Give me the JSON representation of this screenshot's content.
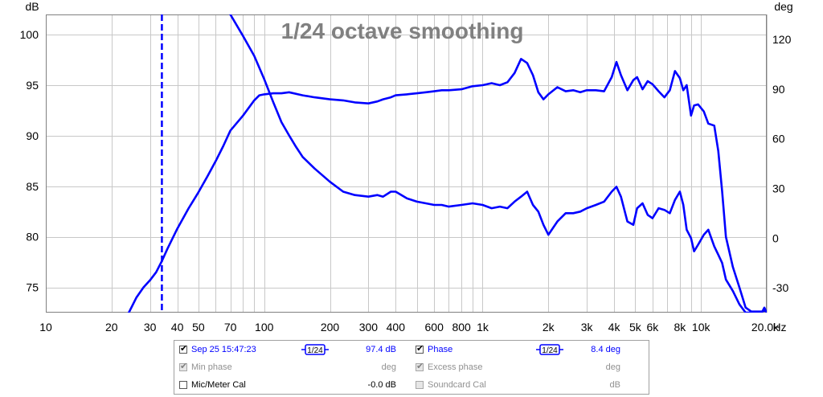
{
  "chart_data": {
    "type": "line",
    "title": "1/24 octave smoothing",
    "xlabel": "Hz",
    "ylabel_left": "dB",
    "ylabel_right": "deg",
    "x_scale": "log",
    "xlim": [
      10,
      20000
    ],
    "ylim_left": [
      72.5,
      102
    ],
    "ylim_right": [
      -45,
      135
    ],
    "grid": true,
    "x_ticks": [
      10,
      20,
      30,
      40,
      50,
      70,
      100,
      200,
      300,
      400,
      600,
      800,
      1000,
      2000,
      3000,
      4000,
      5000,
      6000,
      8000,
      10000,
      20000
    ],
    "x_tick_labels": [
      "10",
      "20",
      "30",
      "40",
      "50",
      "70",
      "100",
      "200",
      "300",
      "400",
      "600",
      "800",
      "1k",
      "2k",
      "3k",
      "4k",
      "5k",
      "6k",
      "8k",
      "10k",
      "20.0k"
    ],
    "y_ticks_left": [
      75,
      80,
      85,
      90,
      95,
      100
    ],
    "y_tick_labels_left": [
      "75",
      "80",
      "85",
      "90",
      "95",
      "100"
    ],
    "y_ticks_right": [
      -30,
      0,
      30,
      60,
      90,
      120
    ],
    "y_tick_labels_right": [
      "-30",
      "0",
      "30",
      "60",
      "90",
      "120"
    ],
    "marker_freq": 34,
    "series": [
      {
        "name": "Sep 25 15:47:23",
        "axis": "left",
        "color": "#0000ff",
        "x": [
          24,
          26,
          28,
          30,
          32,
          34,
          36,
          40,
          45,
          50,
          55,
          60,
          65,
          70,
          80,
          90,
          95,
          100,
          110,
          120,
          130,
          150,
          170,
          200,
          230,
          260,
          300,
          330,
          350,
          380,
          400,
          450,
          500,
          550,
          600,
          650,
          700,
          800,
          900,
          1000,
          1100,
          1200,
          1300,
          1400,
          1500,
          1600,
          1700,
          1800,
          1900,
          2000,
          2200,
          2400,
          2600,
          2800,
          3000,
          3300,
          3600,
          3900,
          4100,
          4300,
          4600,
          4900,
          5100,
          5400,
          5700,
          6000,
          6400,
          6800,
          7200,
          7600,
          8000,
          8300,
          8600,
          9000,
          9300,
          9700,
          10300,
          10800,
          11500,
          12000,
          12500,
          13000,
          14000,
          15000,
          16000,
          17000,
          18000,
          19000,
          19500,
          20000
        ],
        "y": [
          72.5,
          74.0,
          75.0,
          75.7,
          76.5,
          77.6,
          78.8,
          80.8,
          82.8,
          84.4,
          86.0,
          87.5,
          89.0,
          90.5,
          92.0,
          93.5,
          94.0,
          94.1,
          94.2,
          94.2,
          94.3,
          94.0,
          93.8,
          93.6,
          93.5,
          93.3,
          93.2,
          93.4,
          93.6,
          93.8,
          94.0,
          94.1,
          94.2,
          94.3,
          94.4,
          94.5,
          94.5,
          94.6,
          94.9,
          95.0,
          95.2,
          95.0,
          95.3,
          96.2,
          97.6,
          97.2,
          96.0,
          94.3,
          93.6,
          94.1,
          94.8,
          94.4,
          94.5,
          94.3,
          94.5,
          94.5,
          94.4,
          95.8,
          97.3,
          96.0,
          94.5,
          95.5,
          95.8,
          94.6,
          95.4,
          95.1,
          94.4,
          93.8,
          94.5,
          96.4,
          95.7,
          94.5,
          95.0,
          92.0,
          93.0,
          93.1,
          92.4,
          91.2,
          91.0,
          88.5,
          84.5,
          80.0,
          77.0,
          75.0,
          73.0,
          72.6,
          72.6,
          72.6,
          72.7,
          72.6
        ]
      },
      {
        "name": "Phase",
        "axis": "right",
        "color": "#0000ff",
        "x": [
          70,
          80,
          90,
          100,
          110,
          120,
          130,
          140,
          150,
          170,
          200,
          230,
          260,
          300,
          330,
          350,
          380,
          400,
          450,
          500,
          550,
          600,
          650,
          700,
          800,
          900,
          1000,
          1100,
          1200,
          1300,
          1400,
          1500,
          1600,
          1700,
          1800,
          1900,
          2000,
          2200,
          2400,
          2600,
          2800,
          3000,
          3300,
          3600,
          3900,
          4100,
          4300,
          4600,
          4900,
          5100,
          5400,
          5700,
          6000,
          6400,
          6800,
          7200,
          7600,
          8000,
          8300,
          8600,
          9000,
          9300,
          9700,
          10300,
          10800,
          11500,
          12000,
          12500,
          13000,
          14000,
          15000,
          16000,
          17000,
          18000,
          19000,
          19500,
          20000
        ],
        "y": [
          135,
          122,
          110,
          96,
          82,
          70,
          62,
          55,
          49,
          42,
          34,
          28,
          26,
          25,
          26,
          25,
          28,
          28,
          24,
          22,
          21,
          20,
          20,
          19,
          20,
          21,
          20,
          18,
          19,
          18,
          22,
          25,
          28,
          20,
          16,
          8,
          2,
          10,
          15,
          15,
          16,
          18,
          20,
          22,
          28,
          31,
          25,
          10,
          8,
          18,
          21,
          14,
          12,
          18,
          17,
          15,
          23,
          28,
          20,
          5,
          0,
          -8,
          -4,
          2,
          5,
          -5,
          -10,
          -15,
          -25,
          -32,
          -40,
          -45,
          -45,
          -45,
          -45,
          -42,
          -45
        ]
      }
    ]
  },
  "legend": {
    "rows": [
      {
        "left": {
          "label": "Sep 25 15:47:23",
          "checked": true,
          "enabled": true,
          "smoothing": "1/24",
          "value": "97.4 dB"
        },
        "right": {
          "label": "Phase",
          "checked": true,
          "enabled": true,
          "smoothing": "1/24",
          "value": "8.4 deg"
        }
      },
      {
        "left": {
          "label": "Min phase",
          "checked": true,
          "enabled": false,
          "smoothing": "",
          "value": "deg"
        },
        "right": {
          "label": "Excess phase",
          "checked": true,
          "enabled": false,
          "smoothing": "",
          "value": "deg"
        }
      },
      {
        "left": {
          "label": "Mic/Meter Cal",
          "checked": false,
          "enabled": true,
          "smoothing": "",
          "value": "-0.0 dB"
        },
        "right": {
          "label": "Soundcard Cal",
          "checked": false,
          "enabled": false,
          "smoothing": "",
          "value": "dB"
        }
      }
    ]
  },
  "colors": {
    "trace": "#0000ff",
    "grid": "#c8c8c8",
    "axis": "#000000",
    "disabled_text": "#909090",
    "title": "#808080"
  }
}
